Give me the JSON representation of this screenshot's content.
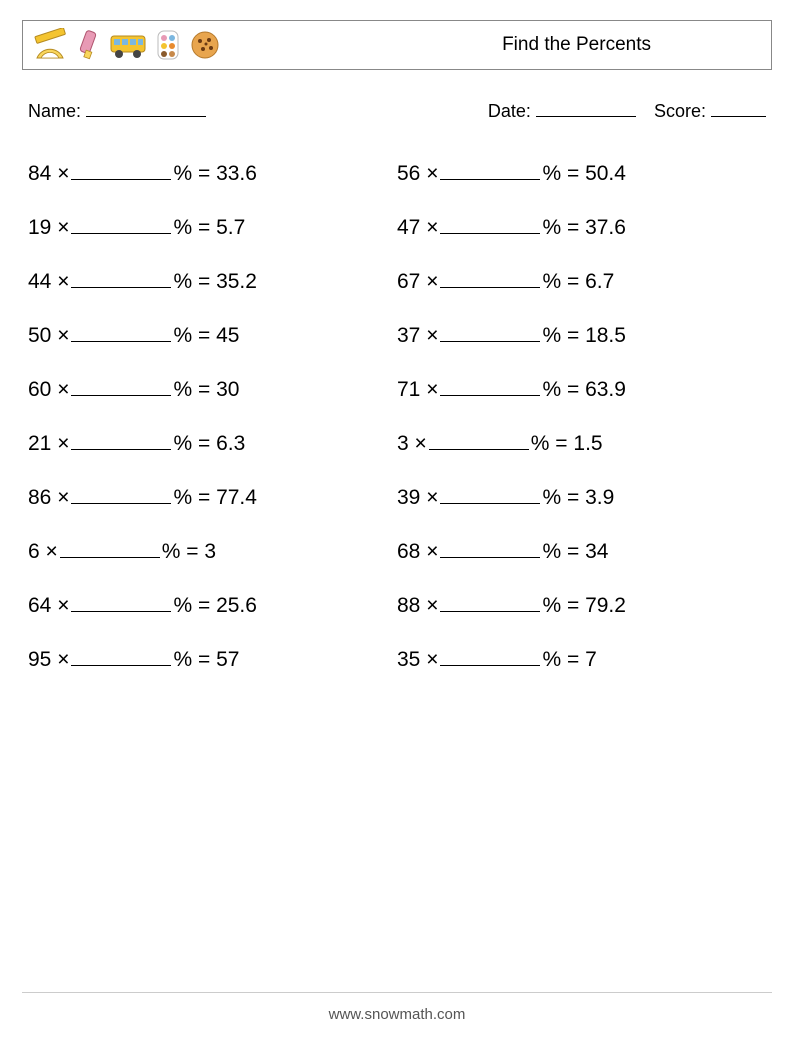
{
  "header": {
    "title": "Find the Percents",
    "icons": [
      "protractor-ruler",
      "marker",
      "school-bus",
      "paint-palette",
      "cookie"
    ]
  },
  "meta": {
    "name_label": "Name:",
    "date_label": "Date:",
    "score_label": "Score:",
    "name_blank_width": 120,
    "date_blank_width": 100,
    "score_blank_width": 55
  },
  "problem_style": {
    "font_size": 21,
    "blank_width": 100,
    "mult_symbol": "×",
    "percent_symbol": "%",
    "equals": "="
  },
  "problems": [
    {
      "left": {
        "a": "84",
        "result": "33.6"
      },
      "right": {
        "a": "56",
        "result": "50.4"
      }
    },
    {
      "left": {
        "a": "19",
        "result": "5.7"
      },
      "right": {
        "a": "47",
        "result": "37.6"
      }
    },
    {
      "left": {
        "a": "44",
        "result": "35.2"
      },
      "right": {
        "a": "67",
        "result": "6.7"
      }
    },
    {
      "left": {
        "a": "50",
        "result": "45"
      },
      "right": {
        "a": "37",
        "result": "18.5"
      }
    },
    {
      "left": {
        "a": "60",
        "result": "30"
      },
      "right": {
        "a": "71",
        "result": "63.9"
      }
    },
    {
      "left": {
        "a": "21",
        "result": "6.3"
      },
      "right": {
        "a": "3",
        "result": "1.5"
      }
    },
    {
      "left": {
        "a": "86",
        "result": "77.4"
      },
      "right": {
        "a": "39",
        "result": "3.9"
      }
    },
    {
      "left": {
        "a": "6",
        "result": "3"
      },
      "right": {
        "a": "68",
        "result": "34"
      }
    },
    {
      "left": {
        "a": "64",
        "result": "25.6"
      },
      "right": {
        "a": "88",
        "result": "79.2"
      }
    },
    {
      "left": {
        "a": "95",
        "result": "57"
      },
      "right": {
        "a": "35",
        "result": "7"
      }
    }
  ],
  "footer": {
    "url": "www.snowmath.com"
  },
  "colors": {
    "text": "#000000",
    "border": "#888888",
    "footer_text": "#555555",
    "background": "#ffffff",
    "icon_yellow": "#f4c430",
    "icon_yellow2": "#f9d65c",
    "icon_orange": "#e88b2e",
    "icon_pink": "#e89ab5",
    "icon_blue": "#7bb7e0",
    "icon_brown": "#c7894a",
    "icon_darkbrown": "#8a5a2b"
  }
}
